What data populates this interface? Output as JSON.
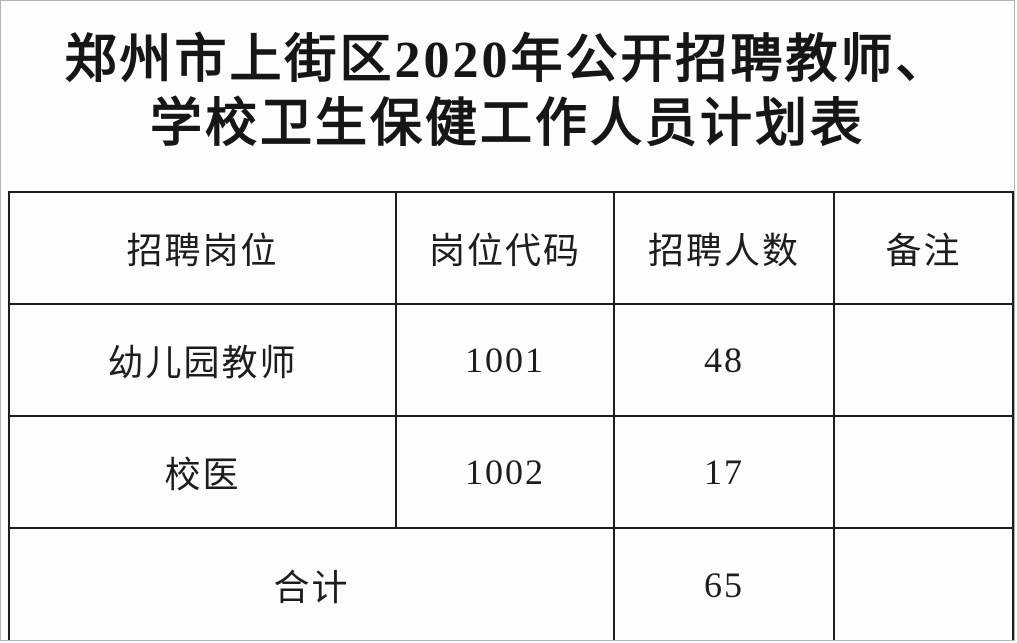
{
  "title": {
    "line1": "郑州市上街区2020年公开招聘教师、",
    "line2": "学校卫生保健工作人员计划表"
  },
  "table": {
    "headers": [
      "招聘岗位",
      "岗位代码",
      "招聘人数",
      "备注"
    ],
    "rows": [
      {
        "position": "幼儿园教师",
        "code": "1001",
        "count": "48",
        "note": ""
      },
      {
        "position": "校医",
        "code": "1002",
        "count": "17",
        "note": ""
      }
    ],
    "total": {
      "label": "合计",
      "count": "65",
      "note": ""
    }
  },
  "colors": {
    "background": "#fdfdfd",
    "text": "#1a1a1a",
    "table_border": "#1e1e1e",
    "page_border": "#b4b4b4"
  }
}
